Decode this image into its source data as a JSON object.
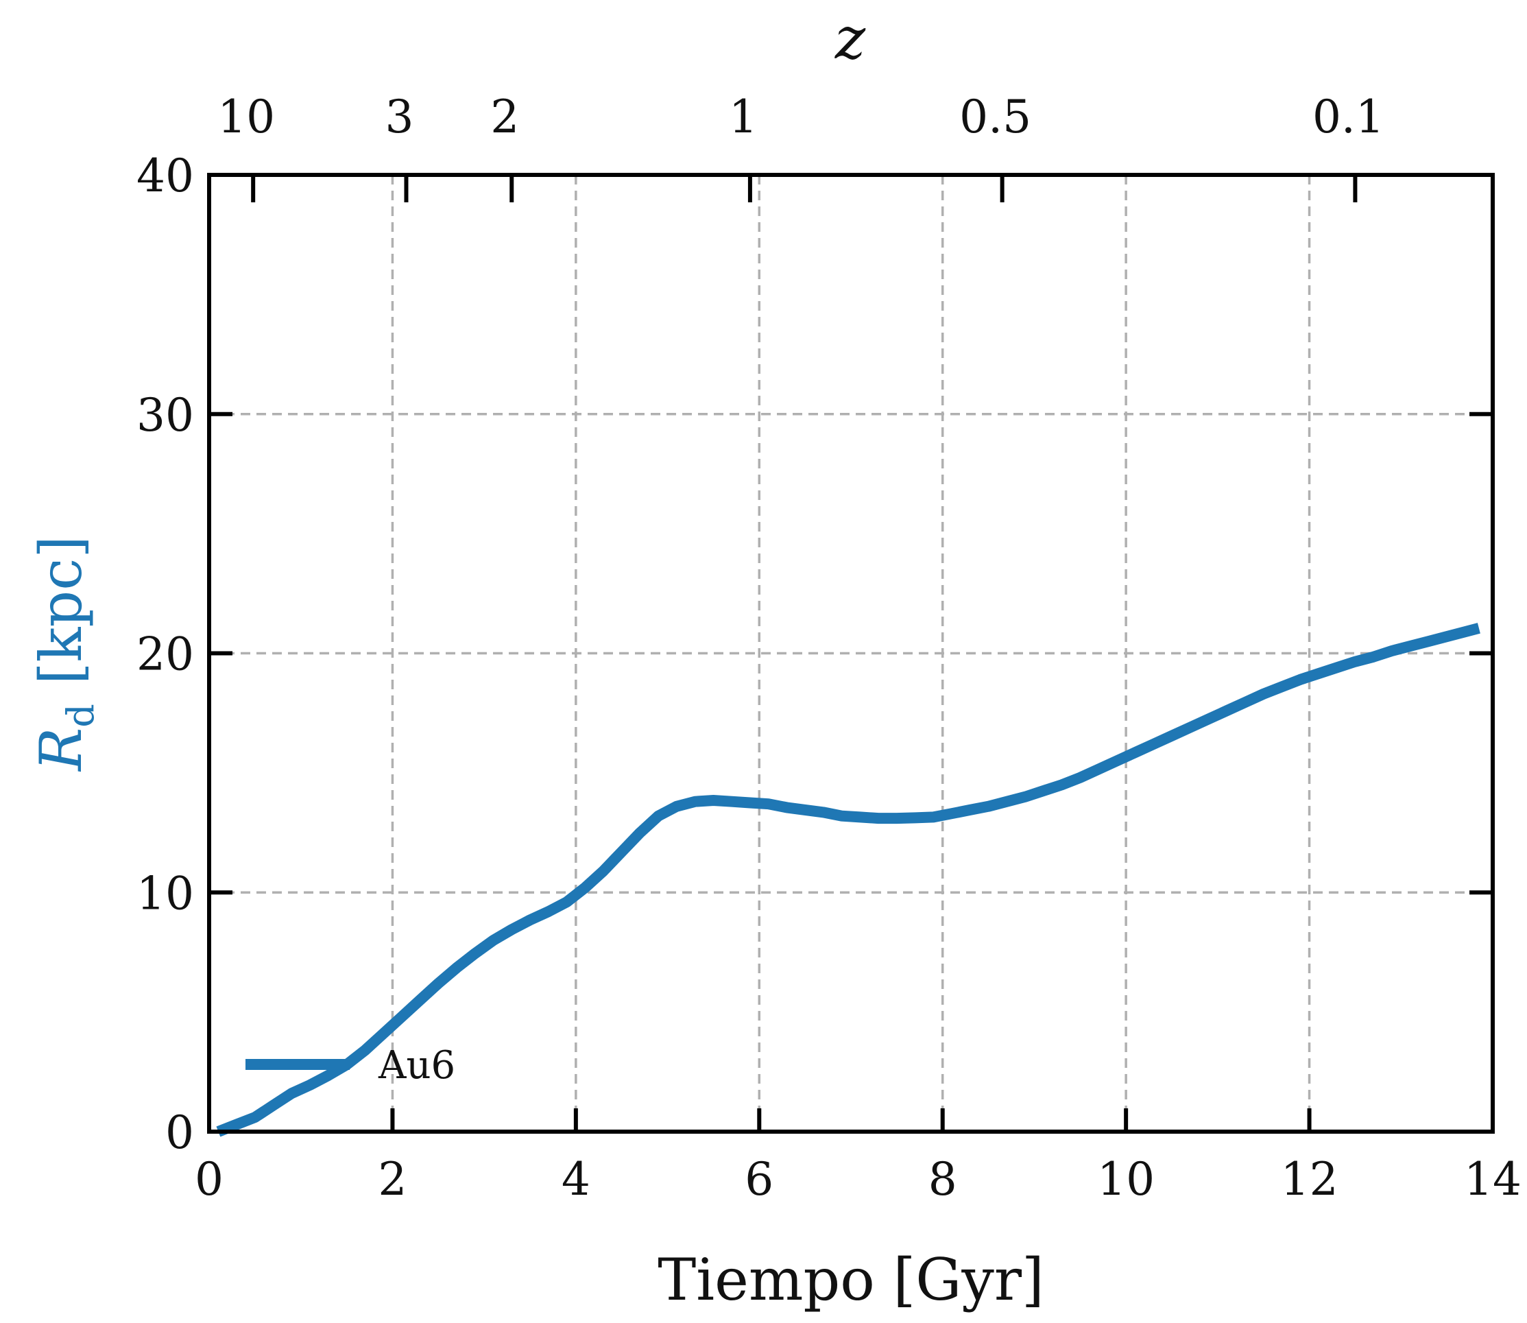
{
  "chart_data": {
    "type": "line",
    "xlabel": "Tiempo [Gyr]",
    "ylabel_symbol": "R",
    "ylabel_subscript": "d",
    "ylabel_unit": "[kpc]",
    "top_xlabel": "z",
    "xlim": [
      0,
      14
    ],
    "ylim": [
      0,
      40
    ],
    "xticks": [
      0,
      2,
      4,
      6,
      8,
      10,
      12,
      14
    ],
    "xtick_labels": [
      "0",
      "2",
      "4",
      "6",
      "8",
      "10",
      "12",
      "14"
    ],
    "yticks": [
      0,
      10,
      20,
      30,
      40
    ],
    "ytick_labels": [
      "0",
      "10",
      "20",
      "30",
      "40"
    ],
    "top_ticks": [
      {
        "t": 0.48,
        "label": "10"
      },
      {
        "t": 2.15,
        "label": "3"
      },
      {
        "t": 3.3,
        "label": "2"
      },
      {
        "t": 5.9,
        "label": "1"
      },
      {
        "t": 8.65,
        "label": "0.5"
      },
      {
        "t": 12.5,
        "label": "0.1"
      }
    ],
    "grid": true,
    "legend_position": "bottom-left",
    "series": [
      {
        "name": "Au6",
        "color": "#1f77b4",
        "x": [
          0.1,
          0.3,
          0.5,
          0.7,
          0.9,
          1.1,
          1.3,
          1.5,
          1.7,
          1.9,
          2.1,
          2.3,
          2.5,
          2.7,
          2.9,
          3.1,
          3.3,
          3.5,
          3.7,
          3.9,
          4.1,
          4.3,
          4.5,
          4.7,
          4.9,
          5.1,
          5.3,
          5.5,
          5.7,
          5.9,
          6.1,
          6.3,
          6.5,
          6.7,
          6.9,
          7.1,
          7.3,
          7.5,
          7.7,
          7.9,
          8.1,
          8.3,
          8.5,
          8.7,
          8.9,
          9.1,
          9.3,
          9.5,
          9.7,
          9.9,
          10.1,
          10.3,
          10.5,
          10.7,
          10.9,
          11.1,
          11.3,
          11.5,
          11.7,
          11.9,
          12.1,
          12.3,
          12.5,
          12.7,
          12.9,
          13.1,
          13.3,
          13.5,
          13.7,
          13.85
        ],
        "y": [
          0.0,
          0.3,
          0.6,
          1.1,
          1.6,
          1.95,
          2.35,
          2.8,
          3.4,
          4.1,
          4.8,
          5.5,
          6.2,
          6.85,
          7.45,
          8.0,
          8.45,
          8.85,
          9.2,
          9.6,
          10.2,
          10.9,
          11.7,
          12.5,
          13.2,
          13.6,
          13.8,
          13.85,
          13.8,
          13.75,
          13.7,
          13.55,
          13.45,
          13.35,
          13.2,
          13.15,
          13.1,
          13.1,
          13.12,
          13.15,
          13.3,
          13.45,
          13.6,
          13.8,
          14.0,
          14.25,
          14.5,
          14.8,
          15.15,
          15.5,
          15.85,
          16.2,
          16.55,
          16.9,
          17.25,
          17.6,
          17.95,
          18.3,
          18.6,
          18.9,
          19.15,
          19.4,
          19.65,
          19.85,
          20.1,
          20.3,
          20.5,
          20.7,
          20.9,
          21.05
        ]
      }
    ]
  }
}
